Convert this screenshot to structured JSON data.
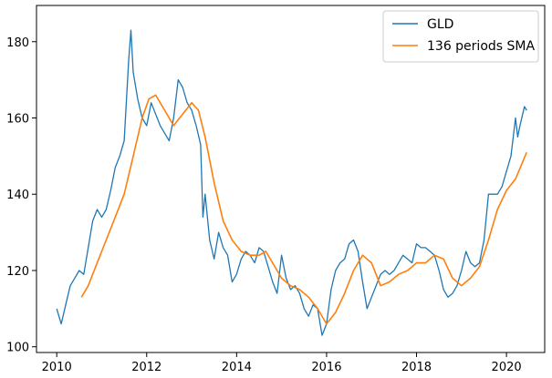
{
  "chart_data": {
    "type": "line",
    "title": "",
    "xlabel": "",
    "ylabel": "",
    "xlim": [
      2009.55,
      2020.85
    ],
    "ylim": [
      98.5,
      189.5
    ],
    "x_ticks": [
      2010,
      2012,
      2014,
      2016,
      2018,
      2020
    ],
    "y_ticks": [
      100,
      120,
      140,
      160,
      180
    ],
    "grid": false,
    "legend": {
      "placement": "top-right"
    },
    "series": [
      {
        "name": "GLD",
        "color": "#1f77b4",
        "x": [
          2010.0,
          2010.05,
          2010.1,
          2010.2,
          2010.3,
          2010.4,
          2010.5,
          2010.6,
          2010.7,
          2010.8,
          2010.9,
          2011.0,
          2011.1,
          2011.2,
          2011.3,
          2011.4,
          2011.5,
          2011.6,
          2011.65,
          2011.7,
          2011.8,
          2011.9,
          2012.0,
          2012.1,
          2012.2,
          2012.3,
          2012.4,
          2012.5,
          2012.6,
          2012.7,
          2012.8,
          2012.9,
          2013.0,
          2013.1,
          2013.2,
          2013.25,
          2013.3,
          2013.4,
          2013.5,
          2013.6,
          2013.7,
          2013.8,
          2013.9,
          2014.0,
          2014.1,
          2014.2,
          2014.3,
          2014.4,
          2014.5,
          2014.6,
          2014.7,
          2014.8,
          2014.9,
          2015.0,
          2015.1,
          2015.2,
          2015.3,
          2015.4,
          2015.5,
          2015.6,
          2015.7,
          2015.8,
          2015.9,
          2016.0,
          2016.1,
          2016.2,
          2016.3,
          2016.4,
          2016.5,
          2016.6,
          2016.7,
          2016.8,
          2016.9,
          2017.0,
          2017.1,
          2017.2,
          2017.3,
          2017.4,
          2017.5,
          2017.6,
          2017.7,
          2017.8,
          2017.9,
          2018.0,
          2018.1,
          2018.2,
          2018.3,
          2018.4,
          2018.5,
          2018.6,
          2018.7,
          2018.8,
          2018.9,
          2019.0,
          2019.1,
          2019.2,
          2019.3,
          2019.4,
          2019.5,
          2019.6,
          2019.7,
          2019.8,
          2019.9,
          2020.0,
          2020.1,
          2020.2,
          2020.25,
          2020.3,
          2020.4,
          2020.45
        ],
        "y": [
          110,
          108,
          106,
          111,
          116,
          118,
          120,
          119,
          126,
          133,
          136,
          134,
          136,
          141,
          147,
          150,
          154,
          175,
          183,
          172,
          165,
          160,
          158,
          164,
          161,
          158,
          156,
          154,
          160,
          170,
          168,
          164,
          162,
          158,
          153,
          134,
          140,
          128,
          123,
          130,
          126,
          124,
          117,
          119,
          123,
          125,
          124,
          122,
          126,
          125,
          121,
          117,
          114,
          124,
          118,
          115,
          116,
          114,
          110,
          108,
          111,
          110,
          103,
          106,
          115,
          120,
          122,
          123,
          127,
          128,
          125,
          117,
          110,
          113,
          116,
          119,
          120,
          119,
          120,
          122,
          124,
          123,
          122,
          127,
          126,
          126,
          125,
          124,
          120,
          115,
          113,
          114,
          116,
          120,
          125,
          122,
          121,
          122,
          128,
          140,
          140,
          140,
          142,
          146,
          150,
          160,
          155,
          158,
          163,
          162
        ]
      },
      {
        "name": "136 periods SMA",
        "color": "#ff7f0e",
        "x": [
          2010.55,
          2010.7,
          2010.9,
          2011.1,
          2011.3,
          2011.5,
          2011.7,
          2011.9,
          2012.05,
          2012.2,
          2012.4,
          2012.6,
          2012.8,
          2013.0,
          2013.15,
          2013.3,
          2013.5,
          2013.7,
          2013.9,
          2014.1,
          2014.3,
          2014.5,
          2014.65,
          2014.8,
          2015.0,
          2015.2,
          2015.4,
          2015.6,
          2015.8,
          2016.0,
          2016.2,
          2016.4,
          2016.6,
          2016.8,
          2017.0,
          2017.2,
          2017.4,
          2017.6,
          2017.8,
          2018.0,
          2018.2,
          2018.4,
          2018.6,
          2018.8,
          2019.0,
          2019.2,
          2019.4,
          2019.6,
          2019.8,
          2020.0,
          2020.2,
          2020.45
        ],
        "y": [
          113,
          116,
          122,
          128,
          134,
          140,
          150,
          160,
          165,
          166,
          162,
          158,
          161,
          164,
          162,
          155,
          143,
          133,
          128,
          125,
          124,
          124,
          125,
          122,
          118,
          116,
          115,
          113,
          110,
          106,
          109,
          114,
          120,
          124,
          122,
          116,
          117,
          119,
          120,
          122,
          122,
          124,
          123,
          118,
          116,
          118,
          121,
          128,
          136,
          141,
          144,
          151
        ]
      }
    ]
  }
}
